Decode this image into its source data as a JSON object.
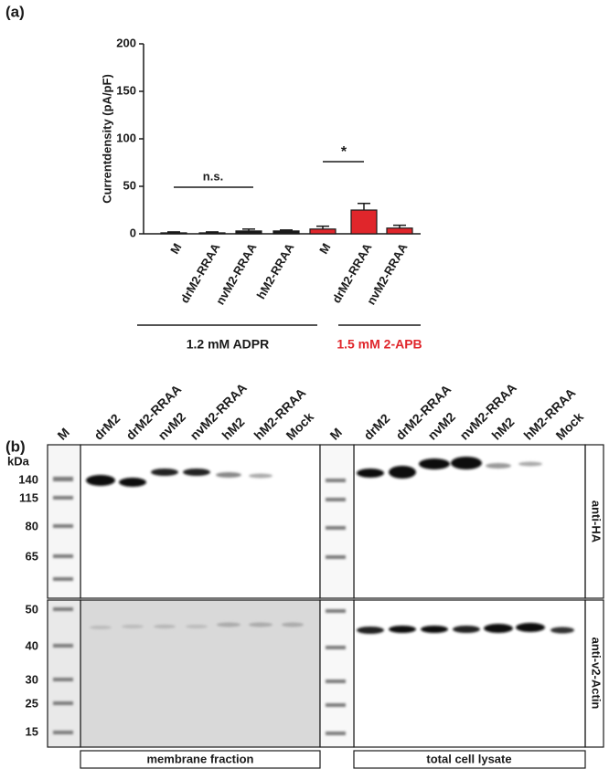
{
  "chart_data": {
    "type": "bar",
    "panel_label": "(a)",
    "ylabel": "Currentdensity (pA/pF)",
    "categories": [
      "M",
      "drM2-RRAA",
      "nvM2-RRAA",
      "hM2-RRAA",
      "M",
      "drM2-RRAA",
      "nvM2-RRAA"
    ],
    "values": [
      1,
      1,
      3,
      3,
      5,
      25,
      6
    ],
    "errors": [
      1,
      1,
      2,
      1,
      3,
      7,
      3
    ],
    "colors": [
      "#1a1a1a",
      "#1a1a1a",
      "#1a1a1a",
      "#1a1a1a",
      "#e0262b",
      "#e0262b",
      "#e0262b"
    ],
    "ylim": [
      0,
      200
    ],
    "yticks": [
      0,
      50,
      100,
      150,
      200
    ],
    "groups": [
      {
        "label": "1.2 mM ADPR",
        "color": "#1a1a1a"
      },
      {
        "label": "1.5 mM 2-APB",
        "color": "#e0262b"
      }
    ],
    "annotations": [
      "n.s.",
      "*"
    ]
  },
  "blot": {
    "panel_label": "(b)",
    "lanes_left": [
      "M",
      "drM2",
      "drM2-RRAA",
      "nvM2",
      "nvM2-RRAA",
      "hM2",
      "hM2-RRAA",
      "Mock"
    ],
    "lanes_right": [
      "M",
      "drM2",
      "drM2-RRAA",
      "nvM2",
      "nvM2-RRAA",
      "hM2",
      "hM2-RRAA",
      "Mock"
    ],
    "kda_label": "kDa",
    "markers_top": [
      140,
      115,
      80,
      65
    ],
    "markers_bottom": [
      50,
      40,
      30,
      25,
      15
    ],
    "antibody_labels": [
      "anti-HA",
      "anti-v2-Actin"
    ],
    "fractions": [
      "membrane fraction",
      "total cell lysate"
    ]
  }
}
